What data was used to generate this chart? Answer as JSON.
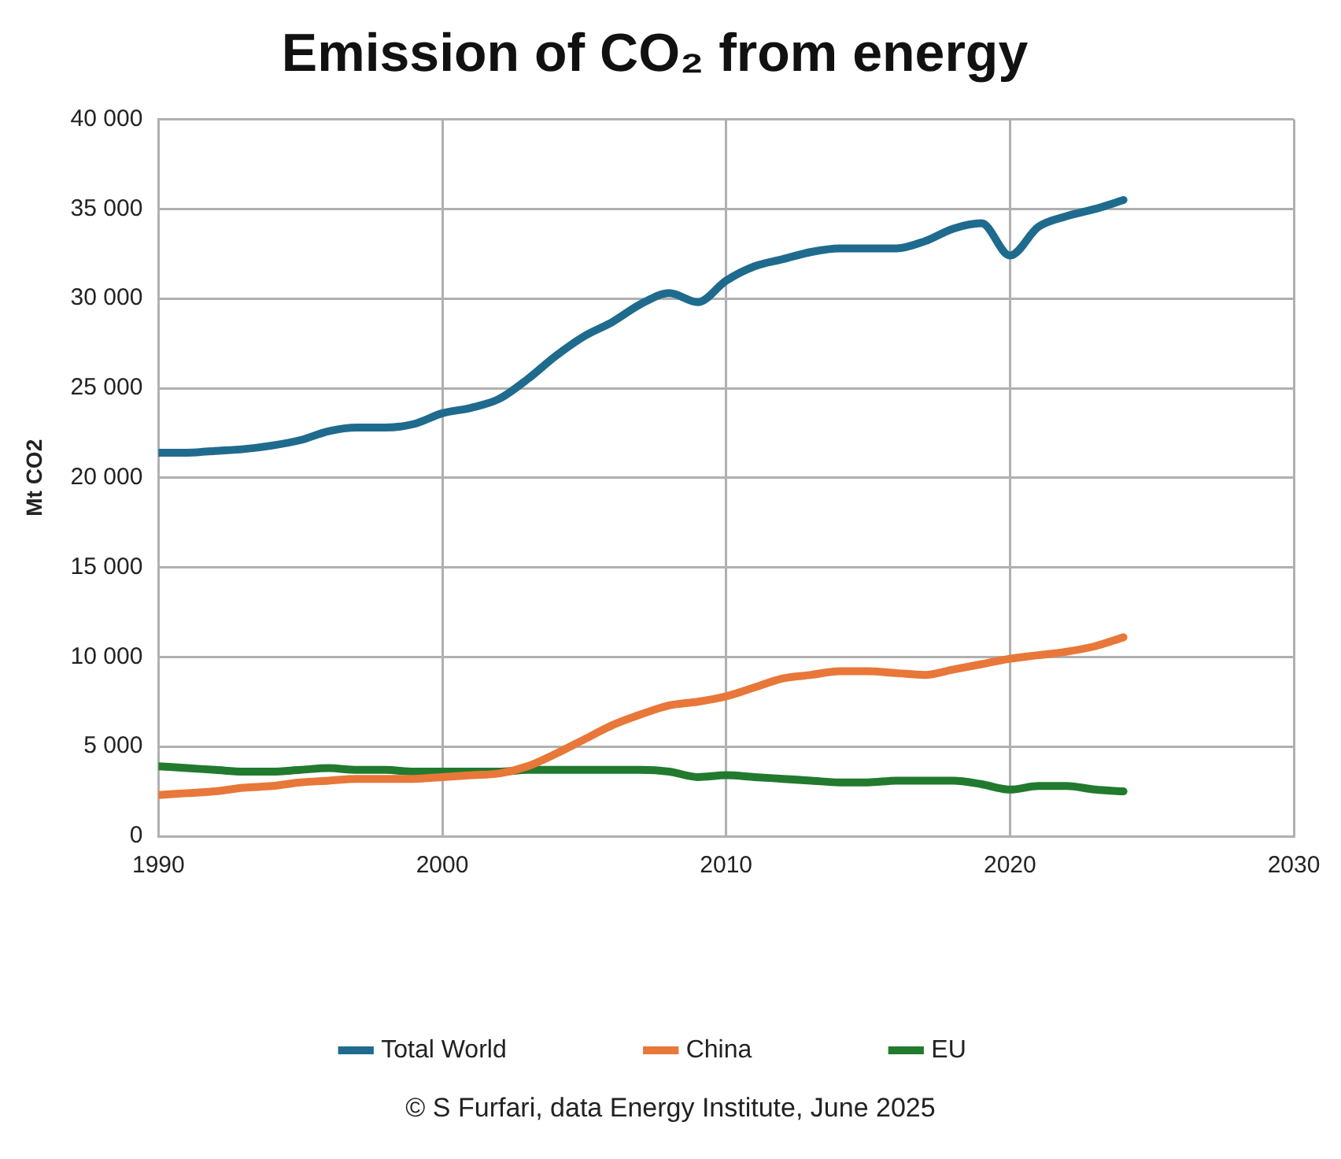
{
  "chart_data": {
    "type": "line",
    "title": "Emission of CO₂ from energy",
    "ylabel": "Mt CO2",
    "x": [
      1990,
      1991,
      1992,
      1993,
      1994,
      1995,
      1996,
      1997,
      1998,
      1999,
      2000,
      2001,
      2002,
      2003,
      2004,
      2005,
      2006,
      2007,
      2008,
      2009,
      2010,
      2011,
      2012,
      2013,
      2014,
      2015,
      2016,
      2017,
      2018,
      2019,
      2020,
      2021,
      2022,
      2023,
      2024
    ],
    "series": [
      {
        "name": "Total World",
        "color": "#1f6b8e",
        "values": [
          21400,
          21400,
          21500,
          21600,
          21800,
          22100,
          22600,
          22800,
          22800,
          23000,
          23600,
          23900,
          24400,
          25500,
          26800,
          27900,
          28700,
          29700,
          30300,
          29800,
          31000,
          31800,
          32200,
          32600,
          32800,
          32800,
          32800,
          33200,
          33900,
          34200,
          32400,
          34000,
          34600,
          35000,
          35500
        ]
      },
      {
        "name": "China",
        "color": "#e8773a",
        "values": [
          2300,
          2400,
          2500,
          2700,
          2800,
          3000,
          3100,
          3200,
          3200,
          3200,
          3300,
          3400,
          3500,
          3900,
          4600,
          5400,
          6200,
          6800,
          7300,
          7500,
          7800,
          8300,
          8800,
          9000,
          9200,
          9200,
          9100,
          9000,
          9300,
          9600,
          9900,
          10100,
          10300,
          10600,
          11100
        ]
      },
      {
        "name": "EU",
        "color": "#217a2e",
        "values": [
          3900,
          3800,
          3700,
          3600,
          3600,
          3700,
          3800,
          3700,
          3700,
          3600,
          3600,
          3600,
          3600,
          3700,
          3700,
          3700,
          3700,
          3700,
          3600,
          3300,
          3400,
          3300,
          3200,
          3100,
          3000,
          3000,
          3100,
          3100,
          3100,
          2900,
          2600,
          2800,
          2800,
          2600,
          2500
        ]
      }
    ],
    "xlim": [
      1990,
      2030
    ],
    "xticks": [
      1990,
      2000,
      2010,
      2020,
      2030
    ],
    "ylim": [
      0,
      40000
    ],
    "yticks": [
      0,
      {
        "value": 5000,
        "label": "5 000"
      },
      {
        "value": 10000,
        "label": "10 000"
      },
      {
        "value": 15000,
        "label": "15 000"
      },
      {
        "value": 20000,
        "label": "20 000"
      },
      {
        "value": 25000,
        "label": "25 000"
      },
      {
        "value": 30000,
        "label": "30 000"
      },
      {
        "value": 35000,
        "label": "35 000"
      },
      {
        "value": 40000,
        "label": "40 000"
      }
    ],
    "grid": true,
    "legend": "bottom",
    "marker": "none",
    "line_style": "solid",
    "annotations": [
      "© S Furfari, data Energy Institute, June 2025"
    ]
  }
}
